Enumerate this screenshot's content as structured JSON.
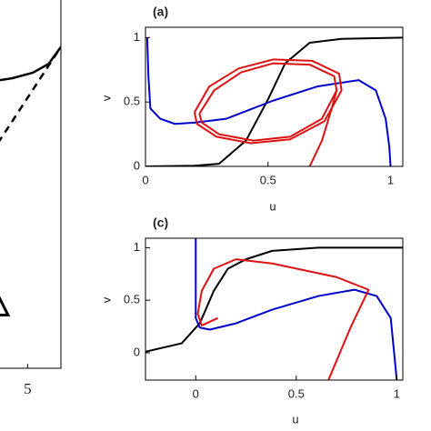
{
  "chart_data": [
    {
      "type": "line",
      "xlim": [
        3.9,
        6.0
      ],
      "ylim": [
        0,
        6
      ],
      "xticks": [
        5
      ],
      "series": [
        {
          "color": "#000000",
          "style": "solid",
          "x": [
            3.9,
            4.53,
            5.16,
            5.63,
            6.0
          ],
          "values": [
            4.56,
            4.61,
            4.7,
            4.84,
            5.11
          ]
        },
        {
          "color": "#000000",
          "style": "dashed",
          "x": [
            3.9,
            6.0
          ],
          "values": [
            3.41,
            5.11
          ]
        },
        {
          "color": "#000000",
          "marker": "triangle",
          "x": [
            4.06
          ],
          "values": [
            0.99
          ]
        }
      ]
    },
    {
      "type": "line",
      "title": "(a)",
      "xlabel": "u",
      "ylabel": "v",
      "xlim": [
        0,
        1.05
      ],
      "ylim": [
        0,
        1.08
      ],
      "xticks": [
        0,
        0.5,
        1
      ],
      "yticks": [
        0,
        0.5,
        1
      ],
      "series": [
        {
          "color": "#000000",
          "x": [
            0,
            0.2,
            0.3,
            0.41,
            0.5,
            0.57,
            0.67,
            0.8,
            1.05
          ],
          "values": [
            0,
            0.005,
            0.02,
            0.2,
            0.52,
            0.8,
            0.96,
            0.99,
            1.0
          ]
        },
        {
          "color": "#0000cc",
          "x": [
            0.007,
            0.012,
            0.02,
            0.06,
            0.12,
            0.2,
            0.33,
            0.52,
            0.7,
            0.87,
            0.94,
            0.98,
            0.995,
            1.0
          ],
          "values": [
            1.0,
            0.7,
            0.45,
            0.37,
            0.33,
            0.34,
            0.37,
            0.51,
            0.62,
            0.67,
            0.59,
            0.37,
            0.15,
            0
          ]
        },
        {
          "color": "#dd1111",
          "x": [
            0.22,
            0.28,
            0.39,
            0.52,
            0.67,
            0.77,
            0.78,
            0.72,
            0.59,
            0.44,
            0.3,
            0.23,
            0.22
          ],
          "values": [
            0.41,
            0.59,
            0.73,
            0.8,
            0.79,
            0.7,
            0.59,
            0.37,
            0.23,
            0.2,
            0.25,
            0.34,
            0.41
          ]
        },
        {
          "color": "#dd1111",
          "x": [
            0.2,
            0.26,
            0.38,
            0.52,
            0.68,
            0.79,
            0.8,
            0.73,
            0.59,
            0.43,
            0.29,
            0.21,
            0.2
          ],
          "values": [
            0.42,
            0.62,
            0.76,
            0.83,
            0.82,
            0.72,
            0.59,
            0.35,
            0.21,
            0.18,
            0.23,
            0.33,
            0.42
          ]
        },
        {
          "color": "#dd1111",
          "x": [
            0.67,
            0.72,
            0.76,
            0.78
          ],
          "values": [
            0,
            0.2,
            0.45,
            0.59
          ]
        }
      ]
    },
    {
      "type": "line",
      "title": "(c)",
      "xlabel": "u",
      "ylabel": "v",
      "xlim": [
        -0.25,
        1.03
      ],
      "ylim": [
        -0.26,
        1.09
      ],
      "xticks": [
        0,
        0.5,
        1
      ],
      "yticks": [
        0,
        0.5,
        1
      ],
      "series": [
        {
          "color": "#000000",
          "x": [
            -0.25,
            -0.07,
            0.02,
            0.09,
            0.16,
            0.25,
            0.38,
            0.61,
            1.03
          ],
          "values": [
            0.01,
            0.09,
            0.28,
            0.59,
            0.8,
            0.89,
            0.97,
            1.0,
            1.0
          ]
        },
        {
          "color": "#0000cc",
          "x": [
            0.0,
            0.0,
            0.02,
            0.07,
            0.2,
            0.38,
            0.61,
            0.79,
            0.9,
            0.97,
            1.0
          ],
          "values": [
            1.09,
            0.33,
            0.24,
            0.22,
            0.28,
            0.41,
            0.54,
            0.6,
            0.54,
            0.33,
            -0.26
          ]
        },
        {
          "color": "#dd1111",
          "x": [
            0.66,
            0.77,
            0.86,
            0.7,
            0.38,
            0.2,
            0.09,
            0.03,
            0.01,
            0.03,
            0.11
          ],
          "values": [
            -0.26,
            0.24,
            0.6,
            0.72,
            0.85,
            0.89,
            0.8,
            0.59,
            0.37,
            0.26,
            0.33
          ]
        }
      ]
    }
  ]
}
